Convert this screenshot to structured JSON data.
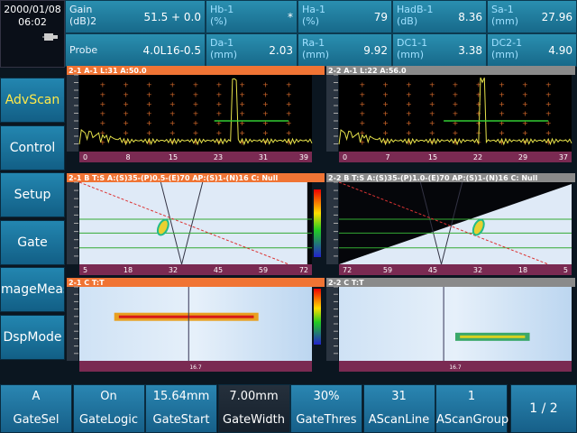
{
  "status": {
    "date": "2000/01/08",
    "time": "06:02"
  },
  "readouts": [
    {
      "label": [
        "Gain",
        "(dB)2"
      ],
      "value": "51.5 + 0.0"
    },
    {
      "label": [
        "Hb-1",
        "(%)"
      ],
      "value": "*"
    },
    {
      "label": [
        "Ha-1",
        "(%)"
      ],
      "value": "79"
    },
    {
      "label": [
        "HadB-1",
        "(dB)"
      ],
      "value": "8.36"
    },
    {
      "label": [
        "Sa-1",
        "(mm)"
      ],
      "value": "27.96"
    },
    {
      "label": [
        "Probe"
      ],
      "value": "4.0L16-0.5"
    },
    {
      "label": [
        "Da-1",
        "(mm)"
      ],
      "value": "2.03"
    },
    {
      "label": [
        "Ra-1",
        "(mm)"
      ],
      "value": "9.92"
    },
    {
      "label": [
        "DC1-1",
        "(mm)"
      ],
      "value": "3.38"
    },
    {
      "label": [
        "DC2-1",
        "(mm)"
      ],
      "value": "4.90"
    }
  ],
  "menu": [
    "AdvScan",
    "Control",
    "Setup",
    "Gate",
    "mageMeas",
    "DspMode"
  ],
  "panels": [
    {
      "header": "2-1 A-1 L:31 A:50.0",
      "ticks": [
        "0",
        "8",
        "15",
        "23",
        "31",
        "39"
      ]
    },
    {
      "header": "2-2 A-1 L:22 A:56.0",
      "ticks": [
        "0",
        "7",
        "15",
        "22",
        "29",
        "37"
      ]
    },
    {
      "header": "2-1 B T:S A:(S)35-(P)0.5-(E)70 AP:(S)1-(N)16 C: Null",
      "ticks": [
        "5",
        "18",
        "32",
        "45",
        "59",
        "72"
      ]
    },
    {
      "header": "2-2 B T:S A:(S)35-(P)1.0-(E)70 AP:(S)1-(N)16 C: Null",
      "ticks": [
        "72",
        "59",
        "45",
        "32",
        "18",
        "5"
      ]
    },
    {
      "header": "2-1 C T:T",
      "ticks": [
        "16.7"
      ]
    },
    {
      "header": "2-2 C T:T",
      "ticks": [
        "16.7"
      ]
    }
  ],
  "buttons": [
    {
      "value": "A",
      "label": "GateSel"
    },
    {
      "value": "On",
      "label": "GateLogic"
    },
    {
      "value": "15.64mm",
      "label": "GateStart"
    },
    {
      "value": "7.00mm",
      "label": "GateWidth"
    },
    {
      "value": "30%",
      "label": "GateThres"
    },
    {
      "value": "31",
      "label": "AScanLine"
    },
    {
      "value": "1",
      "label": "AScanGroup"
    }
  ],
  "page": "1 / 2"
}
